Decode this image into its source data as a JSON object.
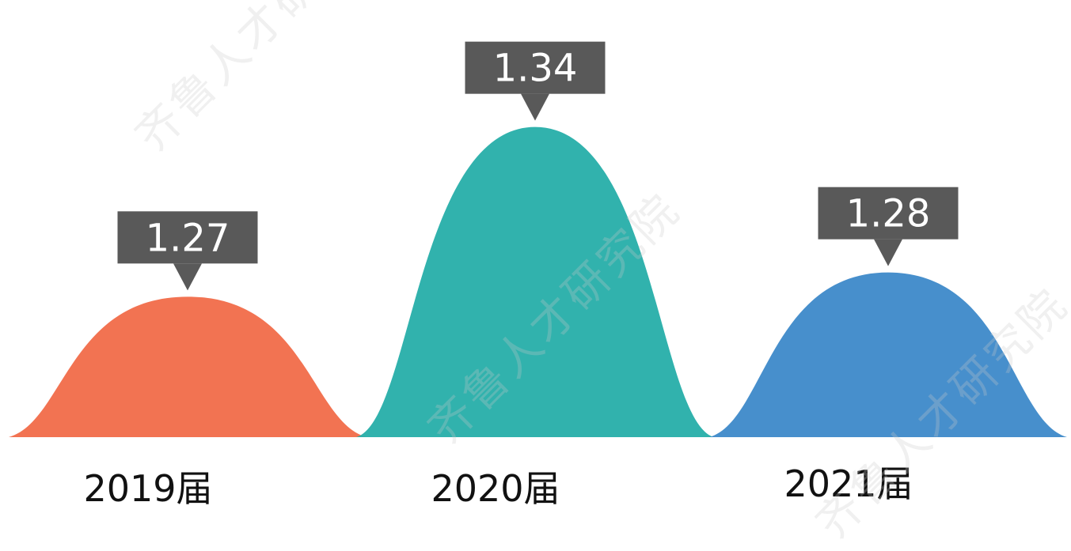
{
  "chart_data": {
    "type": "area",
    "categories": [
      "2019届",
      "2020届",
      "2021届"
    ],
    "values": [
      1.27,
      1.34,
      1.28
    ],
    "ylim": [
      1.2,
      1.35
    ],
    "grid": false,
    "colors": [
      "#F26E4C",
      "#2AB0AA",
      "#418BCA"
    ],
    "label_bg": "#595959",
    "label_color": "#ffffff",
    "axis_label_color": "#111111"
  },
  "watermark": {
    "text": "齐鲁人才研究院"
  }
}
